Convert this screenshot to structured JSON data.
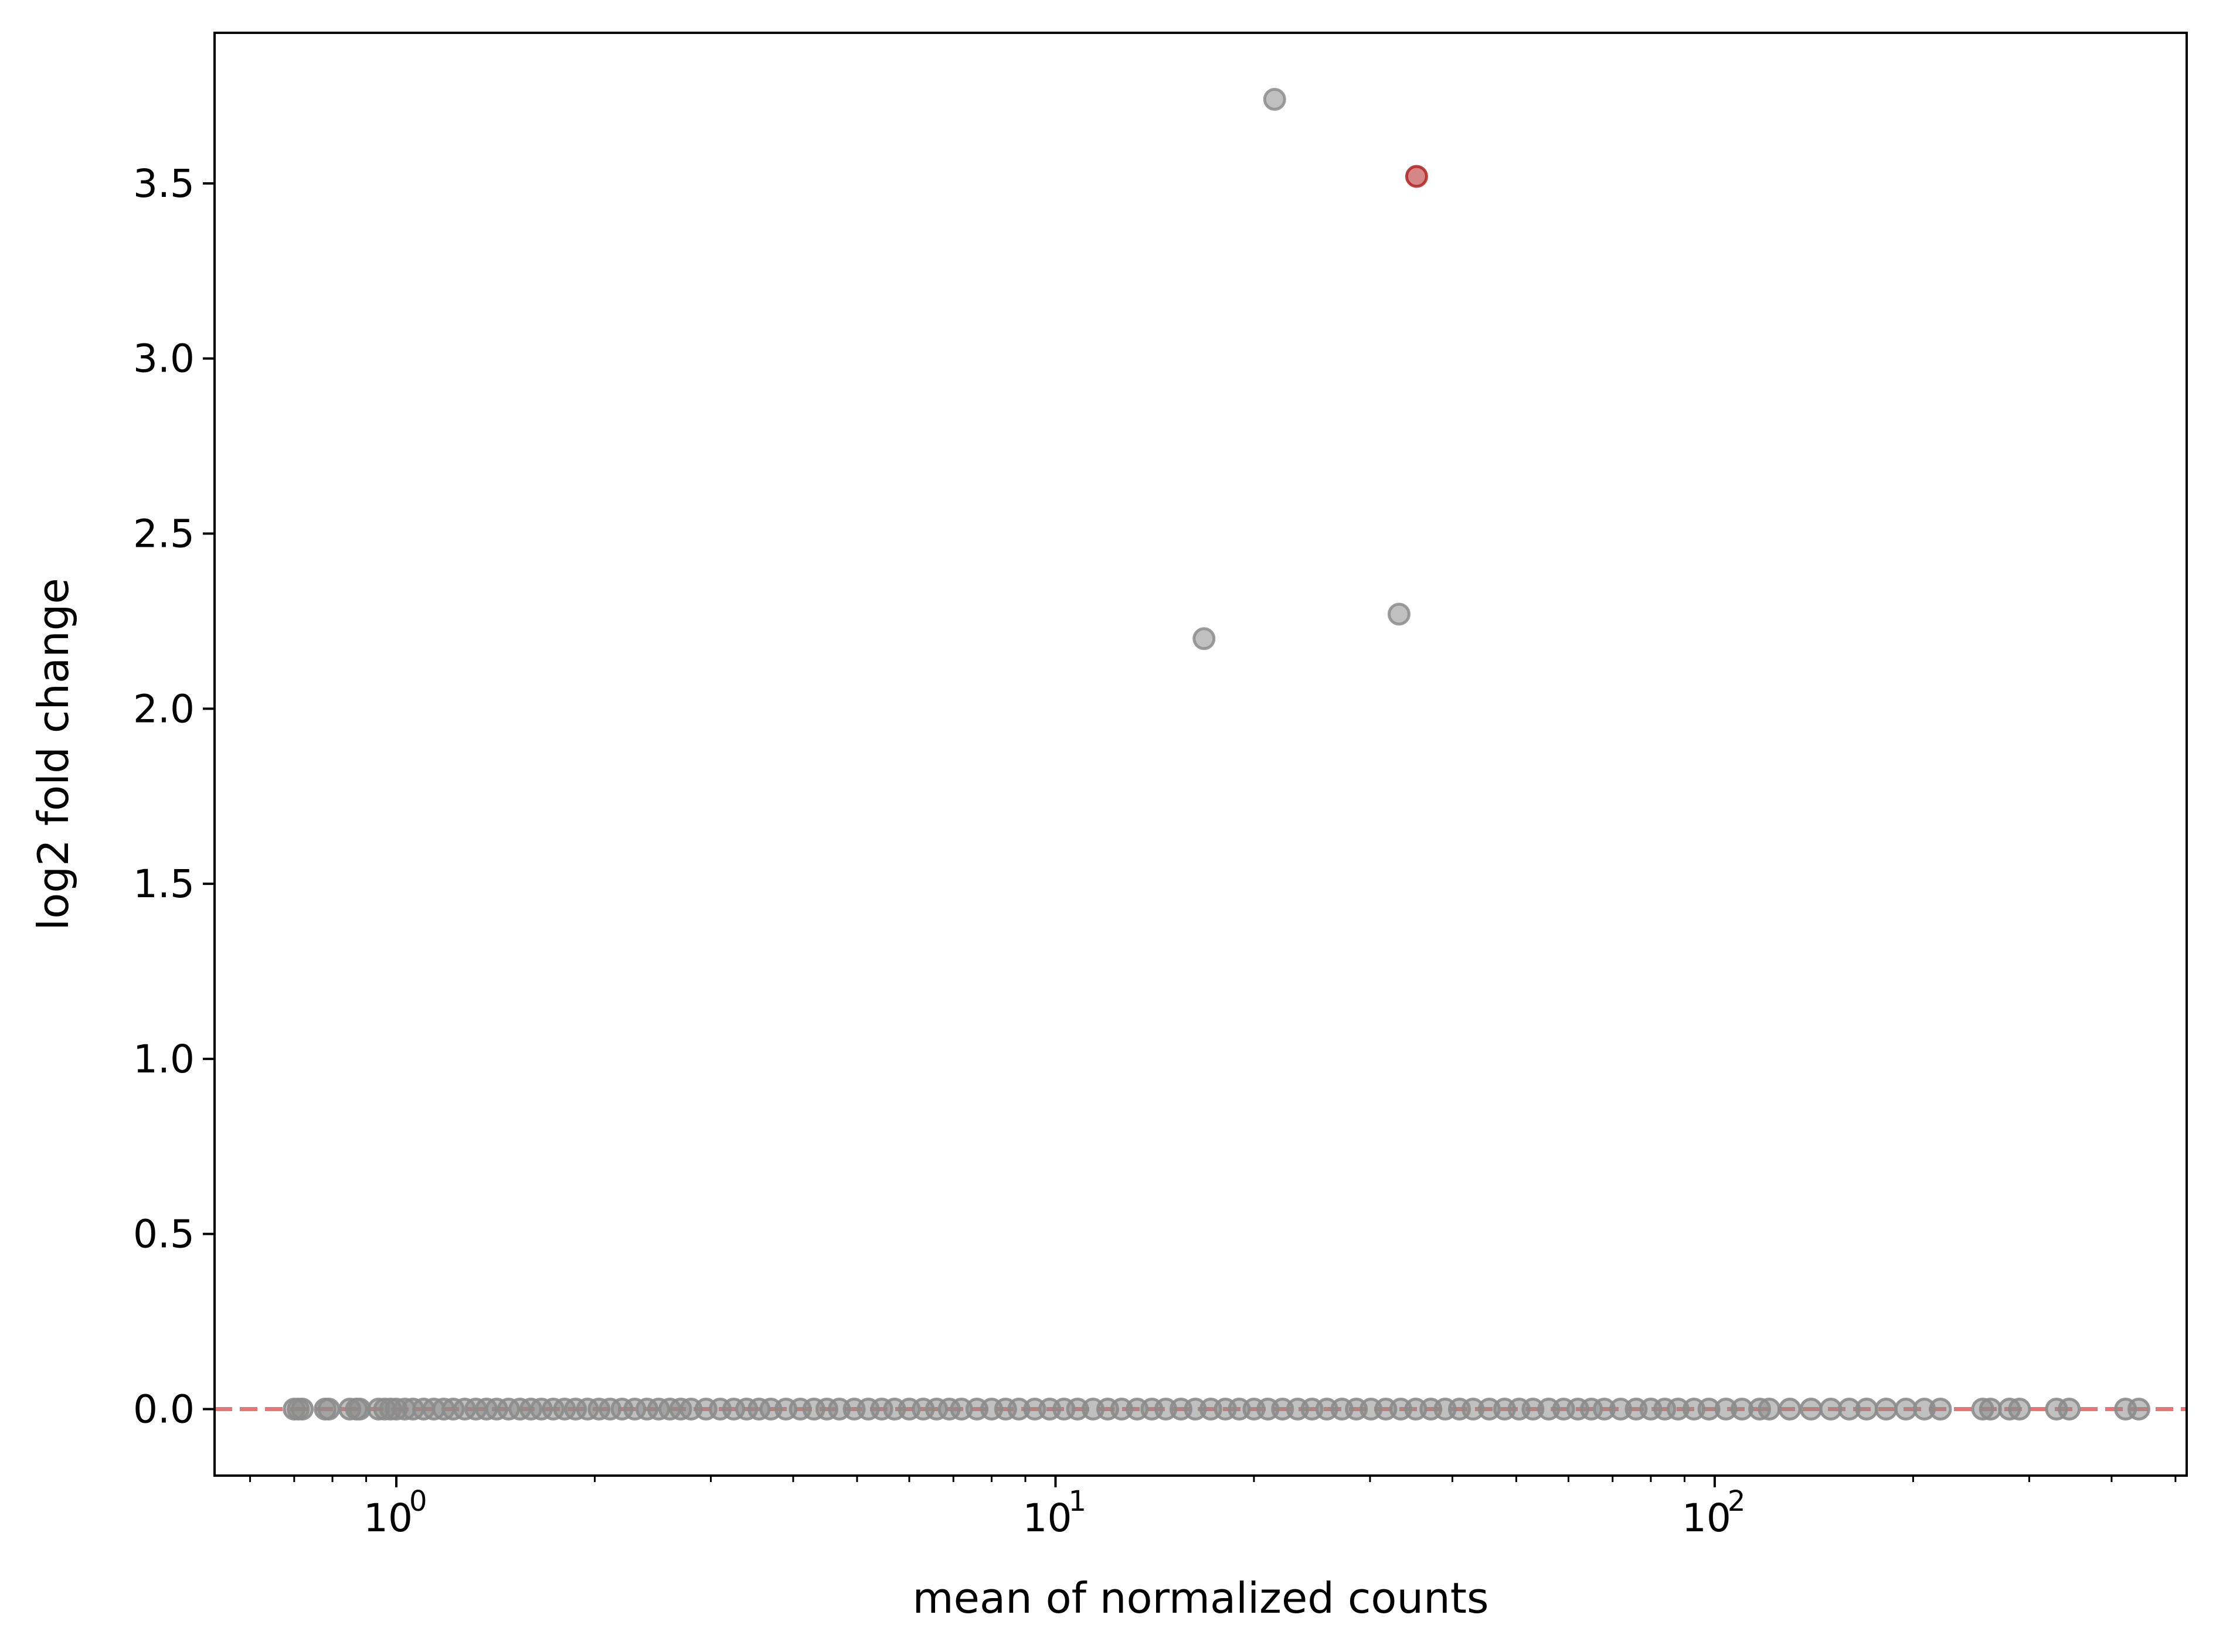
{
  "chart_data": {
    "type": "scatter",
    "title": "",
    "xlabel": "mean of normalized counts",
    "ylabel": "log2 fold change",
    "xscale": "log",
    "xlim": [
      0.53,
      520
    ],
    "ylim": [
      -0.19,
      3.93
    ],
    "grid": false,
    "legend": "none",
    "x_ticks": [
      {
        "base": "10",
        "exp": "0",
        "value": 1
      },
      {
        "base": "10",
        "exp": "1",
        "value": 10
      },
      {
        "base": "10",
        "exp": "2",
        "value": 100
      }
    ],
    "y_ticks": [
      "0.0",
      "0.5",
      "1.0",
      "1.5",
      "2.0",
      "2.5",
      "3.0",
      "3.5"
    ],
    "reference_line": {
      "y": 0,
      "style": "dashed",
      "color": "#e05555"
    },
    "colors": {
      "default_point": "#8c8c8c",
      "highlight_point": "#b22222"
    },
    "points_nonzero": [
      {
        "x": 21.5,
        "y": 3.74,
        "significant": false
      },
      {
        "x": 35.3,
        "y": 3.52,
        "significant": true
      },
      {
        "x": 16.8,
        "y": 2.2,
        "significant": false
      },
      {
        "x": 33.2,
        "y": 2.27,
        "significant": false
      }
    ],
    "points_zero_x": [
      0.7,
      0.71,
      0.72,
      0.78,
      0.79,
      0.85,
      0.87,
      0.88,
      0.94,
      0.96,
      0.98,
      1.0,
      1.03,
      1.06,
      1.1,
      1.14,
      1.18,
      1.22,
      1.27,
      1.32,
      1.37,
      1.42,
      1.48,
      1.54,
      1.6,
      1.66,
      1.73,
      1.8,
      1.87,
      1.95,
      2.03,
      2.11,
      2.2,
      2.3,
      2.4,
      2.5,
      2.6,
      2.7,
      2.8,
      2.95,
      3.1,
      3.25,
      3.4,
      3.55,
      3.7,
      3.9,
      4.1,
      4.3,
      4.5,
      4.7,
      4.95,
      5.2,
      5.45,
      5.7,
      6.0,
      6.3,
      6.6,
      6.9,
      7.2,
      7.6,
      8.0,
      8.4,
      8.8,
      9.3,
      9.8,
      10.3,
      10.8,
      11.4,
      12.0,
      12.6,
      13.3,
      14.0,
      14.7,
      15.5,
      16.3,
      17.2,
      18.1,
      19.0,
      20.0,
      21.0,
      22.1,
      23.3,
      24.5,
      25.8,
      27.2,
      28.6,
      30.1,
      31.7,
      33.4,
      35.2,
      37.1,
      39.0,
      41.0,
      43.0,
      45.5,
      48.0,
      50.5,
      53.0,
      56.0,
      59.0,
      62.0,
      65.0,
      68.0,
      72.0,
      76.0,
      80.0,
      84.0,
      88.0,
      93.0,
      98.0,
      104.0,
      110.0,
      117.0,
      121.0,
      130.0,
      140.0,
      150.0,
      160.0,
      170.0,
      182.0,
      195.0,
      208.0,
      220.0,
      255.0,
      262.0,
      280.0,
      290.0,
      330.0,
      345.0,
      420.0,
      440.0
    ]
  }
}
